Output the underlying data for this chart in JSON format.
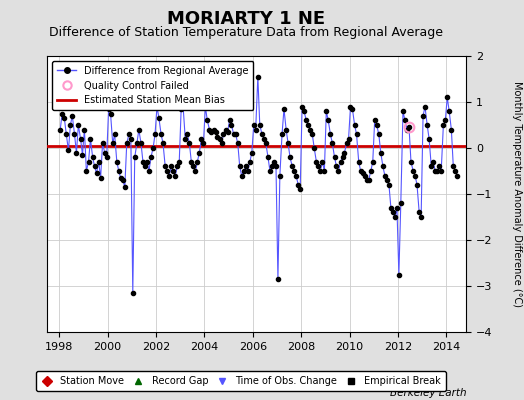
{
  "title": "MORIARTY 1 NE",
  "subtitle": "Difference of Station Temperature Data from Regional Average",
  "ylabel": "Monthly Temperature Anomaly Difference (°C)",
  "bias": 0.05,
  "xlim": [
    1997.5,
    2014.83
  ],
  "ylim": [
    -4,
    2
  ],
  "yticks": [
    -4,
    -3,
    -2,
    -1,
    0,
    1,
    2
  ],
  "xticks": [
    1998,
    2000,
    2002,
    2004,
    2006,
    2008,
    2010,
    2012,
    2014
  ],
  "line_color": "#5555ff",
  "marker_color": "#000000",
  "bias_color": "#cc0000",
  "qc_color": "#ff99cc",
  "bg_color": "#e0e0e0",
  "plot_bg": "#ffffff",
  "grid_color": "#cccccc",
  "title_fontsize": 13,
  "subtitle_fontsize": 9,
  "watermark": "Berkeley Earth",
  "data": [
    [
      1998.04,
      0.4
    ],
    [
      1998.12,
      0.75
    ],
    [
      1998.21,
      0.65
    ],
    [
      1998.29,
      0.3
    ],
    [
      1998.38,
      -0.05
    ],
    [
      1998.46,
      0.5
    ],
    [
      1998.54,
      0.7
    ],
    [
      1998.63,
      0.3
    ],
    [
      1998.71,
      -0.1
    ],
    [
      1998.79,
      0.5
    ],
    [
      1998.88,
      0.2
    ],
    [
      1998.96,
      -0.15
    ],
    [
      1999.04,
      0.4
    ],
    [
      1999.12,
      -0.5
    ],
    [
      1999.21,
      -0.3
    ],
    [
      1999.29,
      0.2
    ],
    [
      1999.38,
      -0.2
    ],
    [
      1999.46,
      -0.4
    ],
    [
      1999.54,
      -0.55
    ],
    [
      1999.63,
      -0.3
    ],
    [
      1999.71,
      -0.65
    ],
    [
      1999.79,
      0.1
    ],
    [
      1999.88,
      -0.1
    ],
    [
      1999.96,
      -0.2
    ],
    [
      2000.04,
      0.85
    ],
    [
      2000.12,
      0.75
    ],
    [
      2000.21,
      0.1
    ],
    [
      2000.29,
      0.3
    ],
    [
      2000.38,
      -0.3
    ],
    [
      2000.46,
      -0.5
    ],
    [
      2000.54,
      -0.65
    ],
    [
      2000.63,
      -0.7
    ],
    [
      2000.71,
      -0.85
    ],
    [
      2000.79,
      0.1
    ],
    [
      2000.88,
      0.3
    ],
    [
      2000.96,
      0.2
    ],
    [
      2001.04,
      -3.15
    ],
    [
      2001.12,
      -0.2
    ],
    [
      2001.21,
      0.1
    ],
    [
      2001.29,
      0.4
    ],
    [
      2001.38,
      0.1
    ],
    [
      2001.46,
      -0.3
    ],
    [
      2001.54,
      -0.4
    ],
    [
      2001.63,
      -0.3
    ],
    [
      2001.71,
      -0.5
    ],
    [
      2001.79,
      -0.2
    ],
    [
      2001.88,
      0.0
    ],
    [
      2001.96,
      0.3
    ],
    [
      2002.04,
      0.9
    ],
    [
      2002.12,
      0.65
    ],
    [
      2002.21,
      0.3
    ],
    [
      2002.29,
      0.1
    ],
    [
      2002.38,
      -0.4
    ],
    [
      2002.46,
      -0.5
    ],
    [
      2002.54,
      -0.6
    ],
    [
      2002.63,
      -0.4
    ],
    [
      2002.71,
      -0.5
    ],
    [
      2002.79,
      -0.6
    ],
    [
      2002.88,
      -0.4
    ],
    [
      2002.96,
      -0.3
    ],
    [
      2003.04,
      0.85
    ],
    [
      2003.12,
      0.9
    ],
    [
      2003.21,
      0.2
    ],
    [
      2003.29,
      0.3
    ],
    [
      2003.38,
      0.1
    ],
    [
      2003.46,
      -0.3
    ],
    [
      2003.54,
      -0.4
    ],
    [
      2003.63,
      -0.5
    ],
    [
      2003.71,
      -0.3
    ],
    [
      2003.79,
      -0.1
    ],
    [
      2003.88,
      0.2
    ],
    [
      2003.96,
      0.1
    ],
    [
      2004.04,
      0.9
    ],
    [
      2004.12,
      0.6
    ],
    [
      2004.21,
      0.4
    ],
    [
      2004.29,
      0.35
    ],
    [
      2004.38,
      0.4
    ],
    [
      2004.46,
      0.35
    ],
    [
      2004.54,
      0.25
    ],
    [
      2004.63,
      0.2
    ],
    [
      2004.71,
      0.1
    ],
    [
      2004.79,
      0.3
    ],
    [
      2004.88,
      0.4
    ],
    [
      2004.96,
      0.35
    ],
    [
      2005.04,
      0.6
    ],
    [
      2005.12,
      0.5
    ],
    [
      2005.21,
      0.3
    ],
    [
      2005.29,
      0.3
    ],
    [
      2005.38,
      0.1
    ],
    [
      2005.46,
      -0.4
    ],
    [
      2005.54,
      -0.6
    ],
    [
      2005.63,
      -0.5
    ],
    [
      2005.71,
      -0.4
    ],
    [
      2005.79,
      -0.5
    ],
    [
      2005.88,
      -0.3
    ],
    [
      2005.96,
      -0.1
    ],
    [
      2006.04,
      0.5
    ],
    [
      2006.12,
      0.4
    ],
    [
      2006.21,
      1.55
    ],
    [
      2006.29,
      0.5
    ],
    [
      2006.38,
      0.3
    ],
    [
      2006.46,
      0.2
    ],
    [
      2006.54,
      0.1
    ],
    [
      2006.63,
      -0.2
    ],
    [
      2006.71,
      -0.5
    ],
    [
      2006.79,
      -0.4
    ],
    [
      2006.88,
      -0.3
    ],
    [
      2006.96,
      -0.4
    ],
    [
      2007.04,
      -2.85
    ],
    [
      2007.12,
      -0.6
    ],
    [
      2007.21,
      0.3
    ],
    [
      2007.29,
      0.85
    ],
    [
      2007.38,
      0.4
    ],
    [
      2007.46,
      0.1
    ],
    [
      2007.54,
      -0.2
    ],
    [
      2007.63,
      -0.4
    ],
    [
      2007.71,
      -0.5
    ],
    [
      2007.79,
      -0.6
    ],
    [
      2007.88,
      -0.8
    ],
    [
      2007.96,
      -0.9
    ],
    [
      2008.04,
      0.9
    ],
    [
      2008.12,
      0.8
    ],
    [
      2008.21,
      0.6
    ],
    [
      2008.29,
      0.5
    ],
    [
      2008.38,
      0.4
    ],
    [
      2008.46,
      0.3
    ],
    [
      2008.54,
      0.0
    ],
    [
      2008.63,
      -0.3
    ],
    [
      2008.71,
      -0.4
    ],
    [
      2008.79,
      -0.5
    ],
    [
      2008.88,
      -0.3
    ],
    [
      2008.96,
      -0.5
    ],
    [
      2009.04,
      0.8
    ],
    [
      2009.12,
      0.6
    ],
    [
      2009.21,
      0.3
    ],
    [
      2009.29,
      0.1
    ],
    [
      2009.38,
      -0.2
    ],
    [
      2009.46,
      -0.4
    ],
    [
      2009.54,
      -0.5
    ],
    [
      2009.63,
      -0.3
    ],
    [
      2009.71,
      -0.2
    ],
    [
      2009.79,
      -0.1
    ],
    [
      2009.88,
      0.1
    ],
    [
      2009.96,
      0.2
    ],
    [
      2010.04,
      0.9
    ],
    [
      2010.12,
      0.85
    ],
    [
      2010.21,
      0.5
    ],
    [
      2010.29,
      0.3
    ],
    [
      2010.38,
      -0.3
    ],
    [
      2010.46,
      -0.5
    ],
    [
      2010.54,
      -0.55
    ],
    [
      2010.63,
      -0.6
    ],
    [
      2010.71,
      -0.7
    ],
    [
      2010.79,
      -0.7
    ],
    [
      2010.88,
      -0.5
    ],
    [
      2010.96,
      -0.3
    ],
    [
      2011.04,
      0.6
    ],
    [
      2011.12,
      0.5
    ],
    [
      2011.21,
      0.3
    ],
    [
      2011.29,
      -0.1
    ],
    [
      2011.38,
      -0.4
    ],
    [
      2011.46,
      -0.6
    ],
    [
      2011.54,
      -0.7
    ],
    [
      2011.63,
      -0.8
    ],
    [
      2011.71,
      -1.3
    ],
    [
      2011.79,
      -1.4
    ],
    [
      2011.88,
      -1.5
    ],
    [
      2011.96,
      -1.3
    ],
    [
      2012.04,
      -2.75
    ],
    [
      2012.12,
      -1.2
    ],
    [
      2012.21,
      0.8
    ],
    [
      2012.29,
      0.6
    ],
    [
      2012.38,
      0.4
    ],
    [
      2012.46,
      0.45
    ],
    [
      2012.54,
      -0.3
    ],
    [
      2012.63,
      -0.5
    ],
    [
      2012.71,
      -0.6
    ],
    [
      2012.79,
      -0.8
    ],
    [
      2012.88,
      -1.4
    ],
    [
      2012.96,
      -1.5
    ],
    [
      2013.04,
      0.7
    ],
    [
      2013.12,
      0.9
    ],
    [
      2013.21,
      0.5
    ],
    [
      2013.29,
      0.2
    ],
    [
      2013.38,
      -0.4
    ],
    [
      2013.46,
      -0.3
    ],
    [
      2013.54,
      -0.5
    ],
    [
      2013.63,
      -0.5
    ],
    [
      2013.71,
      -0.4
    ],
    [
      2013.79,
      -0.5
    ],
    [
      2013.88,
      0.5
    ],
    [
      2013.96,
      0.6
    ],
    [
      2014.04,
      1.1
    ],
    [
      2014.12,
      0.8
    ],
    [
      2014.21,
      0.4
    ],
    [
      2014.29,
      -0.4
    ],
    [
      2014.38,
      -0.5
    ],
    [
      2014.46,
      -0.6
    ]
  ],
  "qc_failed": [
    [
      2012.46,
      0.45
    ]
  ],
  "legend1_items": [
    {
      "label": "Difference from Regional Average",
      "color": "#5555ff"
    },
    {
      "label": "Quality Control Failed",
      "color": "#ff99cc"
    },
    {
      "label": "Estimated Station Mean Bias",
      "color": "#cc0000"
    }
  ],
  "legend2_items": [
    {
      "label": "Station Move",
      "color": "#cc0000",
      "marker": "D"
    },
    {
      "label": "Record Gap",
      "color": "#006600",
      "marker": "^"
    },
    {
      "label": "Time of Obs. Change",
      "color": "#5555ff",
      "marker": "v"
    },
    {
      "label": "Empirical Break",
      "color": "#000000",
      "marker": "s"
    }
  ]
}
